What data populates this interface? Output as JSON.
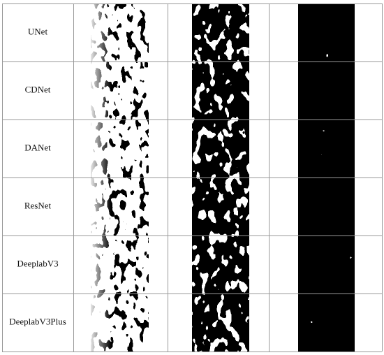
{
  "table": {
    "rows": [
      "UNet",
      "CDNet",
      "DANet",
      "ResNet",
      "DeeplabV3",
      "DeeplabV3Plus"
    ]
  }
}
